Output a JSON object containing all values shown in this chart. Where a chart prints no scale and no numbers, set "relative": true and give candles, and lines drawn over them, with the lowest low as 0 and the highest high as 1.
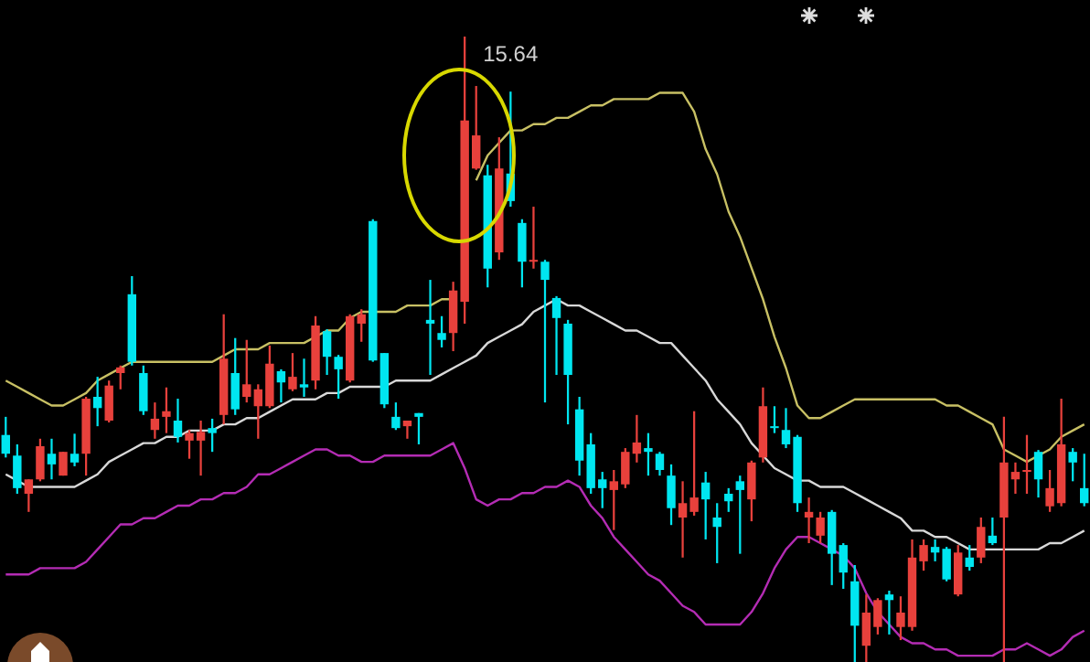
{
  "chart_data": {
    "type": "candlestick",
    "relative": true,
    "legend": false,
    "marker": "none",
    "categories": [
      null,
      null,
      null,
      null,
      null,
      null,
      null,
      null,
      null,
      null,
      null,
      null,
      null,
      null,
      null,
      null,
      null,
      null,
      null,
      null,
      null,
      null,
      null,
      null,
      null,
      null,
      null,
      null,
      null,
      null,
      null,
      null,
      null,
      null,
      null,
      null,
      null,
      null,
      null,
      null,
      null,
      null,
      null,
      null,
      null,
      null,
      null,
      null,
      null,
      null,
      null,
      null,
      null,
      null,
      null,
      null,
      null,
      null,
      null,
      null,
      null,
      null,
      null,
      null,
      null,
      null,
      null,
      null,
      null,
      null,
      null,
      null,
      null,
      null,
      null,
      null,
      null,
      null,
      null,
      null,
      null,
      null,
      null,
      null,
      null,
      null,
      null,
      null,
      null,
      null,
      null,
      null,
      null,
      null,
      null
    ],
    "ohlc": [
      [
        0.363,
        0.392,
        0.327,
        0.333
      ],
      [
        0.33,
        0.348,
        0.269,
        0.278
      ],
      [
        0.269,
        0.292,
        0.24,
        0.292
      ],
      [
        0.292,
        0.357,
        0.289,
        0.345
      ],
      [
        0.333,
        0.357,
        0.292,
        0.316
      ],
      [
        0.298,
        0.336,
        0.298,
        0.336
      ],
      [
        0.333,
        0.365,
        0.313,
        0.319
      ],
      [
        0.333,
        0.424,
        0.298,
        0.421
      ],
      [
        0.424,
        0.456,
        0.377,
        0.406
      ],
      [
        0.386,
        0.45,
        0.383,
        0.442
      ],
      [
        0.462,
        0.474,
        0.436,
        0.471
      ],
      [
        0.588,
        0.617,
        0.474,
        0.48
      ],
      [
        0.462,
        0.474,
        0.395,
        0.401
      ],
      [
        0.371,
        0.415,
        0.357,
        0.389
      ],
      [
        0.392,
        0.439,
        0.366,
        0.401
      ],
      [
        0.386,
        0.421,
        0.351,
        0.36
      ],
      [
        0.354,
        0.371,
        0.325,
        0.366
      ],
      [
        0.354,
        0.386,
        0.298,
        0.368
      ],
      [
        0.374,
        0.389,
        0.336,
        0.366
      ],
      [
        0.395,
        0.556,
        0.38,
        0.485
      ],
      [
        0.462,
        0.518,
        0.395,
        0.404
      ],
      [
        0.424,
        0.515,
        0.415,
        0.444
      ],
      [
        0.409,
        0.444,
        0.357,
        0.436
      ],
      [
        0.409,
        0.506,
        0.406,
        0.477
      ],
      [
        0.465,
        0.468,
        0.415,
        0.447
      ],
      [
        0.436,
        0.494,
        0.433,
        0.456
      ],
      [
        0.444,
        0.485,
        0.424,
        0.439
      ],
      [
        0.45,
        0.553,
        0.436,
        0.538
      ],
      [
        0.529,
        0.532,
        0.459,
        0.488
      ],
      [
        0.488,
        0.491,
        0.421,
        0.468
      ],
      [
        0.45,
        0.556,
        0.447,
        0.553
      ],
      [
        0.541,
        0.564,
        0.512,
        0.556
      ],
      [
        0.705,
        0.708,
        0.48,
        0.482
      ],
      [
        0.494,
        0.494,
        0.406,
        0.412
      ],
      [
        0.392,
        0.415,
        0.371,
        0.374
      ],
      [
        0.377,
        0.386,
        0.357,
        0.386
      ],
      [
        0.398,
        0.398,
        0.348,
        0.392
      ],
      [
        0.547,
        0.611,
        0.459,
        0.541
      ],
      [
        0.526,
        0.553,
        0.503,
        0.515
      ],
      [
        0.526,
        0.608,
        0.497,
        0.594
      ],
      [
        0.576,
        1,
        0.541,
        0.866
      ],
      [
        0.789,
        0.921,
        0.787,
        0.842
      ],
      [
        0.778,
        0.795,
        0.599,
        0.629
      ],
      [
        0.655,
        0.839,
        0.643,
        0.789
      ],
      [
        0.781,
        0.912,
        0.728,
        0.737
      ],
      [
        0.702,
        0.708,
        0.599,
        0.64
      ],
      [
        0.64,
        0.728,
        0.629,
        0.643
      ],
      [
        0.64,
        0.643,
        0.415,
        0.611
      ],
      [
        0.582,
        0.585,
        0.459,
        0.55
      ],
      [
        0.541,
        0.547,
        0.38,
        0.459
      ],
      [
        0.404,
        0.424,
        0.298,
        0.322
      ],
      [
        0.348,
        0.366,
        0.269,
        0.278
      ],
      [
        0.292,
        0.304,
        0.246,
        0.278
      ],
      [
        0.275,
        0.307,
        0.211,
        0.289
      ],
      [
        0.284,
        0.342,
        0.278,
        0.336
      ],
      [
        0.333,
        0.395,
        0.319,
        0.351
      ],
      [
        0.342,
        0.366,
        0.298,
        0.336
      ],
      [
        0.333,
        0.336,
        0.298,
        0.307
      ],
      [
        0.298,
        0.316,
        0.219,
        0.246
      ],
      [
        0.231,
        0.289,
        0.167,
        0.254
      ],
      [
        0.24,
        0.401,
        0.234,
        0.263
      ],
      [
        0.287,
        0.304,
        0.196,
        0.26
      ],
      [
        0.231,
        0.254,
        0.158,
        0.216
      ],
      [
        0.269,
        0.278,
        0.24,
        0.257
      ],
      [
        0.289,
        0.298,
        0.173,
        0.275
      ],
      [
        0.26,
        0.322,
        0.225,
        0.319
      ],
      [
        0.327,
        0.439,
        0.319,
        0.409
      ],
      [
        0.377,
        0.409,
        0.366,
        0.374
      ],
      [
        0.371,
        0.406,
        0.342,
        0.348
      ],
      [
        0.36,
        0.363,
        0.24,
        0.254
      ],
      [
        0.231,
        0.263,
        0.19,
        0.24
      ],
      [
        0.202,
        0.24,
        0.19,
        0.231
      ],
      [
        0.24,
        0.243,
        0.123,
        0.173
      ],
      [
        0.187,
        0.19,
        0.117,
        0.143
      ],
      [
        0.129,
        0.155,
        0,
        0.058
      ],
      [
        0.026,
        0.108,
        0,
        0.079
      ],
      [
        0.056,
        0.102,
        0.044,
        0.099
      ],
      [
        0.108,
        0.114,
        0.044,
        0.099
      ],
      [
        0.056,
        0.105,
        0.035,
        0.079
      ],
      [
        0.056,
        0.196,
        0.05,
        0.167
      ],
      [
        0.161,
        0.196,
        0.146,
        0.187
      ],
      [
        0.184,
        0.196,
        0.161,
        0.175
      ],
      [
        0.181,
        0.184,
        0.129,
        0.132
      ],
      [
        0.108,
        0.187,
        0.105,
        0.175
      ],
      [
        0.167,
        0.187,
        0.146,
        0.152
      ],
      [
        0.167,
        0.231,
        0.158,
        0.216
      ],
      [
        0.202,
        0.231,
        0.187,
        0.19
      ],
      [
        0.231,
        0.392,
        0,
        0.319
      ],
      [
        0.292,
        0.319,
        0.269,
        0.304
      ],
      [
        0.304,
        0.363,
        0.269,
        0.307
      ],
      [
        0.336,
        0.339,
        0.263,
        0.292
      ],
      [
        0.249,
        0.307,
        0.24,
        0.278
      ],
      [
        0.254,
        0.421,
        0.249,
        0.348
      ],
      [
        0.336,
        0.342,
        0.289,
        0.319
      ],
      [
        0.278,
        0.333,
        0.249,
        0.254
      ]
    ],
    "colors": [
      "#00e6f0",
      "#00e6f0",
      "#e8413c",
      "#e8413c",
      "#00e6f0",
      "#e8413c",
      "#00e6f0",
      "#e8413c",
      "#00e6f0",
      "#e8413c",
      "#e8413c",
      "#00e6f0",
      "#00e6f0",
      "#e8413c",
      "#e8413c",
      "#00e6f0",
      "#e8413c",
      "#e8413c",
      "#00e6f0",
      "#e8413c",
      "#00e6f0",
      "#e8413c",
      "#e8413c",
      "#e8413c",
      "#00e6f0",
      "#e8413c",
      "#00e6f0",
      "#e8413c",
      "#00e6f0",
      "#00e6f0",
      "#e8413c",
      "#e8413c",
      "#00e6f0",
      "#00e6f0",
      "#00e6f0",
      "#e8413c",
      "#00e6f0",
      "#00e6f0",
      "#00e6f0",
      "#e8413c",
      "#e8413c",
      "#e8413c",
      "#00e6f0",
      "#e8413c",
      "#00e6f0",
      "#00e6f0",
      "#e8413c",
      "#00e6f0",
      "#00e6f0",
      "#00e6f0",
      "#00e6f0",
      "#00e6f0",
      "#00e6f0",
      "#e8413c",
      "#e8413c",
      "#e8413c",
      "#00e6f0",
      "#00e6f0",
      "#00e6f0",
      "#e8413c",
      "#e8413c",
      "#00e6f0",
      "#00e6f0",
      "#00e6f0",
      "#00e6f0",
      "#e8413c",
      "#e8413c",
      "#00e6f0",
      "#00e6f0",
      "#00e6f0",
      "#e8413c",
      "#e8413c",
      "#00e6f0",
      "#00e6f0",
      "#00e6f0",
      "#e8413c",
      "#e8413c",
      "#00e6f0",
      "#e8413c",
      "#e8413c",
      "#e8413c",
      "#00e6f0",
      "#00e6f0",
      "#e8413c",
      "#00e6f0",
      "#e8413c",
      "#00e6f0",
      "#e8413c",
      "#e8413c",
      "#e8413c",
      "#00e6f0",
      "#e8413c",
      "#e8413c",
      "#00e6f0",
      "#00e6f0"
    ],
    "series": [
      {
        "type": "line",
        "color": "#c8c064",
        "values": [
          0.45,
          0.44,
          0.43,
          0.42,
          0.41,
          0.41,
          0.42,
          0.43,
          0.45,
          0.46,
          0.47,
          0.48,
          0.48,
          0.48,
          0.48,
          0.48,
          0.48,
          0.48,
          0.48,
          0.49,
          0.5,
          0.5,
          0.5,
          0.51,
          0.51,
          0.51,
          0.51,
          0.52,
          0.53,
          0.53,
          0.55,
          0.56,
          0.56,
          0.56,
          0.56,
          0.57,
          0.57,
          0.57,
          0.58,
          0.58,
          null,
          0.77,
          0.81,
          0.83,
          0.85,
          0.85,
          0.86,
          0.86,
          0.87,
          0.87,
          0.88,
          0.89,
          0.89,
          0.9,
          0.9,
          0.9,
          0.9,
          0.91,
          0.91,
          0.91,
          0.88,
          0.82,
          0.78,
          0.72,
          0.68,
          0.63,
          0.58,
          0.52,
          0.47,
          0.41,
          0.39,
          0.39,
          0.4,
          0.41,
          0.42,
          0.42,
          0.42,
          0.42,
          0.42,
          0.42,
          0.42,
          0.42,
          0.41,
          0.41,
          0.4,
          0.39,
          0.38,
          0.34,
          0.33,
          0.32,
          0.33,
          0.34,
          0.36,
          0.37,
          0.38
        ]
      },
      {
        "type": "line",
        "color": "#d8d8d8",
        "values": [
          0.3,
          0.29,
          0.28,
          0.28,
          0.28,
          0.28,
          0.28,
          0.29,
          0.3,
          0.32,
          0.33,
          0.34,
          0.35,
          0.35,
          0.36,
          0.36,
          0.37,
          0.37,
          0.37,
          0.38,
          0.38,
          0.39,
          0.39,
          0.4,
          0.41,
          0.42,
          0.42,
          0.42,
          0.43,
          0.43,
          0.44,
          0.44,
          0.44,
          0.44,
          0.45,
          0.45,
          0.45,
          0.45,
          0.46,
          0.47,
          0.48,
          0.49,
          0.51,
          0.52,
          0.53,
          0.54,
          0.56,
          0.57,
          0.58,
          0.57,
          0.57,
          0.56,
          0.55,
          0.54,
          0.53,
          0.53,
          0.52,
          0.51,
          0.51,
          0.49,
          0.47,
          0.45,
          0.42,
          0.4,
          0.38,
          0.35,
          0.33,
          0.31,
          0.3,
          0.29,
          0.29,
          0.28,
          0.28,
          0.28,
          0.27,
          0.26,
          0.25,
          0.24,
          0.23,
          0.21,
          0.21,
          0.2,
          0.2,
          0.19,
          0.18,
          0.18,
          0.18,
          0.18,
          0.18,
          0.18,
          0.18,
          0.19,
          0.19,
          0.2,
          0.21
        ]
      },
      {
        "type": "line",
        "color": "#b42cb4",
        "values": [
          0.14,
          0.14,
          0.14,
          0.15,
          0.15,
          0.15,
          0.15,
          0.16,
          0.18,
          0.2,
          0.22,
          0.22,
          0.23,
          0.23,
          0.24,
          0.25,
          0.25,
          0.26,
          0.26,
          0.27,
          0.27,
          0.28,
          0.3,
          0.3,
          0.31,
          0.32,
          0.33,
          0.34,
          0.34,
          0.33,
          0.33,
          0.32,
          0.32,
          0.33,
          0.33,
          0.33,
          0.33,
          0.33,
          0.34,
          0.35,
          0.31,
          0.26,
          0.25,
          0.26,
          0.26,
          0.27,
          0.27,
          0.28,
          0.28,
          0.29,
          0.28,
          0.25,
          0.23,
          0.2,
          0.18,
          0.16,
          0.14,
          0.13,
          0.11,
          0.09,
          0.08,
          0.06,
          0.06,
          0.06,
          0.06,
          0.08,
          0.11,
          0.15,
          0.18,
          0.2,
          0.2,
          0.19,
          0.18,
          0.17,
          0.15,
          0.11,
          0.08,
          0.06,
          0.04,
          0.03,
          0.03,
          0.02,
          0.02,
          0.01,
          0.01,
          0.01,
          0.01,
          0.02,
          0.02,
          0.03,
          0.02,
          0.01,
          0.02,
          0.04,
          0.05
        ]
      }
    ],
    "annotations": [
      "15.64"
    ]
  }
}
